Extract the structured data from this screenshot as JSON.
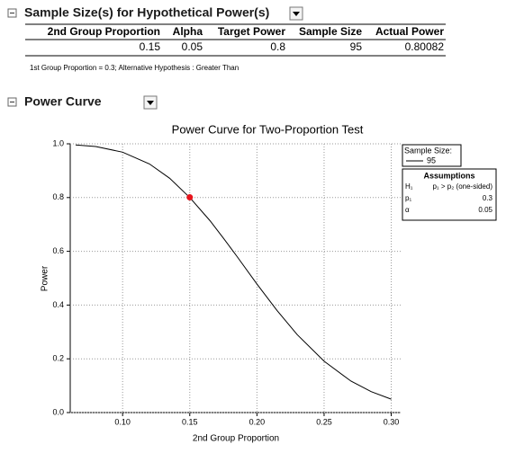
{
  "report": {
    "section1_title": "Sample Size(s) for Hypothetical Power(s)",
    "table": {
      "headers": [
        "2nd Group Proportion",
        "Alpha",
        "Target Power",
        "Sample Size",
        "Actual Power"
      ],
      "rows": [
        [
          0.15,
          0.05,
          0.8,
          95,
          0.80082
        ]
      ]
    },
    "note": "1st Group Proportion = 0.3; Alternative Hypothesis : Greater Than",
    "section2_title": "Power Curve"
  },
  "chart_data": {
    "type": "line",
    "title": "Power Curve for Two-Proportion Test",
    "x_label": "2nd Group Proportion",
    "y_label": "Power",
    "xlim": [
      0.061,
      0.307
    ],
    "ylim": [
      0,
      1
    ],
    "xticks": [
      {
        "value": 0.1,
        "label": "0.10"
      },
      0.15,
      {
        "value": 0.2,
        "label": "0.20"
      },
      0.25,
      {
        "value": 0.3,
        "label": "0.30"
      }
    ],
    "yticks": [
      {
        "value": 0,
        "label": "0.0"
      },
      0.2,
      0.4,
      0.6,
      0.8,
      {
        "value": 1,
        "label": "1.0"
      }
    ],
    "grid": true,
    "x": [
      0.065,
      0.08,
      0.1,
      0.12,
      0.135,
      0.15,
      0.165,
      0.175,
      0.185,
      0.2,
      0.215,
      0.23,
      0.25,
      0.27,
      0.285,
      0.3
    ],
    "series": [
      {
        "name": "95",
        "color": "#000000",
        "values": [
          0.996,
          0.99,
          0.969,
          0.925,
          0.872,
          0.8,
          0.714,
          0.649,
          0.582,
          0.478,
          0.38,
          0.29,
          0.191,
          0.117,
          0.078,
          0.05
        ]
      }
    ],
    "marker": {
      "x": 0.15,
      "y": 0.80082,
      "color": "#e8141c"
    },
    "legend_title": "Sample Size:",
    "assumptions": {
      "title": "Assumptions",
      "rows": [
        [
          "H₁",
          "p₁ > p₂ (one-sided)"
        ],
        [
          "p₁",
          "0.3"
        ],
        [
          "α",
          "0.05"
        ]
      ]
    }
  }
}
